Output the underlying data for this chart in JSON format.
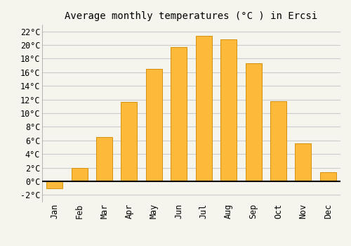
{
  "title": "Average monthly temperatures (°C ) in Ercsi",
  "months": [
    "Jan",
    "Feb",
    "Mar",
    "Apr",
    "May",
    "Jun",
    "Jul",
    "Aug",
    "Sep",
    "Oct",
    "Nov",
    "Dec"
  ],
  "values": [
    -1.0,
    2.0,
    6.5,
    11.7,
    16.5,
    19.7,
    21.3,
    20.8,
    17.3,
    11.8,
    5.6,
    1.3
  ],
  "bar_color": "#FDB93A",
  "bar_edge_color": "#D4900A",
  "background_color": "#F5F5EE",
  "plot_bg_color": "#F5F5EE",
  "grid_color": "#CCCCCC",
  "ylim": [
    -3,
    23
  ],
  "yticks": [
    -2,
    0,
    2,
    4,
    6,
    8,
    10,
    12,
    14,
    16,
    18,
    20,
    22
  ],
  "title_fontsize": 10,
  "tick_fontsize": 8.5,
  "font_family": "monospace"
}
